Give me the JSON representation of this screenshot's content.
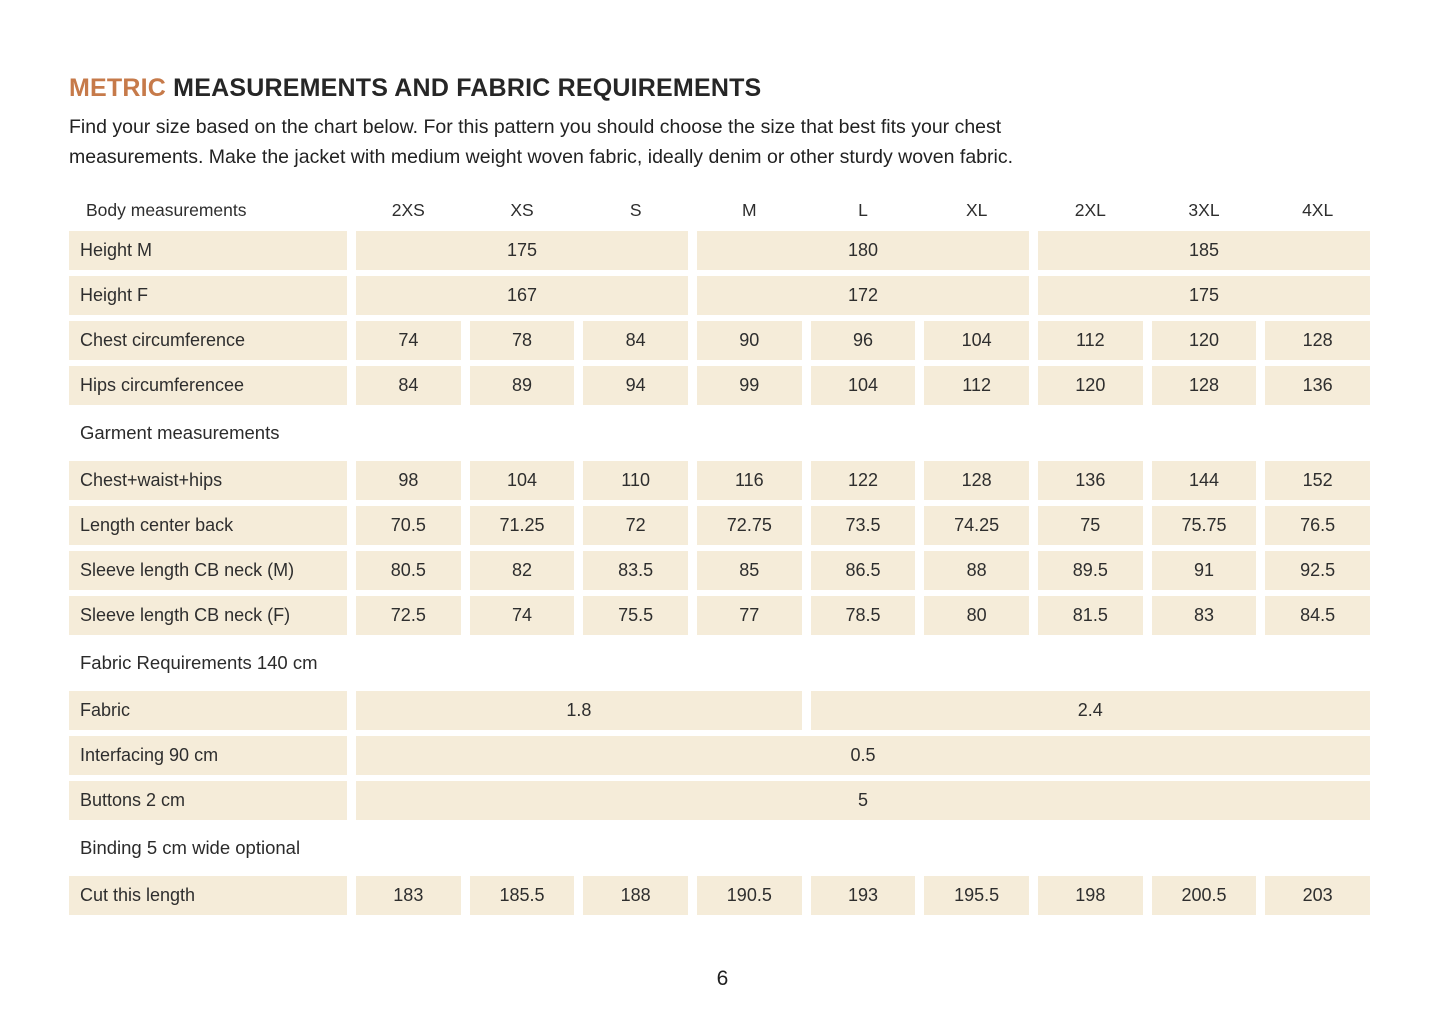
{
  "title": {
    "highlight": "METRIC",
    "rest": " MEASUREMENTS AND FABRIC REQUIREMENTS"
  },
  "intro": {
    "line1": "Find your size based on the chart below. For this pattern you should choose the size that best fits your chest",
    "line2": "measurements. Make the jacket with medium weight woven fabric, ideally denim or other sturdy woven fabric."
  },
  "colors": {
    "accent": "#C67A4A",
    "cell_background": "#F5ECD9",
    "text": "#2B2B2B"
  },
  "page_number": "6",
  "table": {
    "header": {
      "label": "Body measurements",
      "sizes": [
        "2XS",
        "XS",
        "S",
        "M",
        "L",
        "XL",
        "2XL",
        "3XL",
        "4XL"
      ]
    },
    "sections": {
      "garment": "Garment measurements",
      "fabric_requirements": "Fabric Requirements 140 cm",
      "binding": "Binding 5 cm wide optional"
    },
    "rows": {
      "height_m": {
        "label": "Height M",
        "values": [
          "175",
          "180",
          "185"
        ]
      },
      "height_f": {
        "label": "Height F",
        "values": [
          "167",
          "172",
          "175"
        ]
      },
      "chest": {
        "label": "Chest circumference",
        "values": [
          "74",
          "78",
          "84",
          "90",
          "96",
          "104",
          "112",
          "120",
          "128"
        ]
      },
      "hips": {
        "label": "Hips circumferencee",
        "values": [
          "84",
          "89",
          "94",
          "99",
          "104",
          "112",
          "120",
          "128",
          "136"
        ]
      },
      "chest_waist_hips": {
        "label": "Chest+waist+hips",
        "values": [
          "98",
          "104",
          "110",
          "116",
          "122",
          "128",
          "136",
          "144",
          "152"
        ]
      },
      "length_center_back": {
        "label": "Length center back",
        "values": [
          "70.5",
          "71.25",
          "72",
          "72.75",
          "73.5",
          "74.25",
          "75",
          "75.75",
          "76.5"
        ]
      },
      "sleeve_m": {
        "label": "Sleeve length CB neck (M)",
        "values": [
          "80.5",
          "82",
          "83.5",
          "85",
          "86.5",
          "88",
          "89.5",
          "91",
          "92.5"
        ]
      },
      "sleeve_f": {
        "label": "Sleeve length CB neck (F)",
        "values": [
          "72.5",
          "74",
          "75.5",
          "77",
          "78.5",
          "80",
          "81.5",
          "83",
          "84.5"
        ]
      },
      "fabric": {
        "label": "Fabric",
        "values": [
          "1.8",
          "2.4"
        ]
      },
      "interfacing": {
        "label": "Interfacing 90 cm",
        "values": [
          "0.5"
        ]
      },
      "buttons": {
        "label": "Buttons 2 cm",
        "values": [
          "5"
        ]
      },
      "cut_length": {
        "label": "Cut this length",
        "values": [
          "183",
          "185.5",
          "188",
          "190.5",
          "193",
          "195.5",
          "198",
          "200.5",
          "203"
        ]
      }
    }
  }
}
